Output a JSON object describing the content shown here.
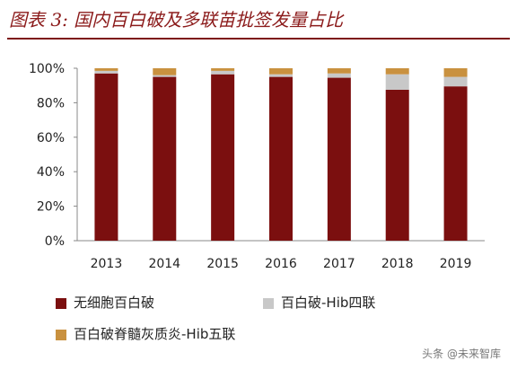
{
  "header": {
    "title": "图表 3:  国内百白破及多联苗批签发量占比"
  },
  "watermark": "头条 @未来智库",
  "colors": {
    "series1": "#7b0f0f",
    "series2": "#c8c8c8",
    "series3": "#c9913f",
    "title": "#8b1a1a"
  },
  "chart_data": {
    "type": "bar",
    "stacked": true,
    "categories": [
      "2013",
      "2014",
      "2015",
      "2016",
      "2017",
      "2018",
      "2019"
    ],
    "series": [
      {
        "name": "无细胞百白破",
        "values": [
          97,
          95,
          96.5,
          95,
          94.5,
          87.5,
          89.5
        ]
      },
      {
        "name": "百白破-Hib四联",
        "values": [
          1.5,
          1,
          2,
          1.5,
          2.5,
          9,
          5.5
        ]
      },
      {
        "name": "百白破脊髓灰质炎-Hib五联",
        "values": [
          1.5,
          4,
          1.5,
          3.5,
          3,
          3.5,
          5
        ]
      }
    ],
    "yticks": [
      "0%",
      "20%",
      "40%",
      "60%",
      "80%",
      "100%"
    ],
    "ylim": [
      0,
      100
    ],
    "grid": false,
    "legend_position": "bottom"
  }
}
